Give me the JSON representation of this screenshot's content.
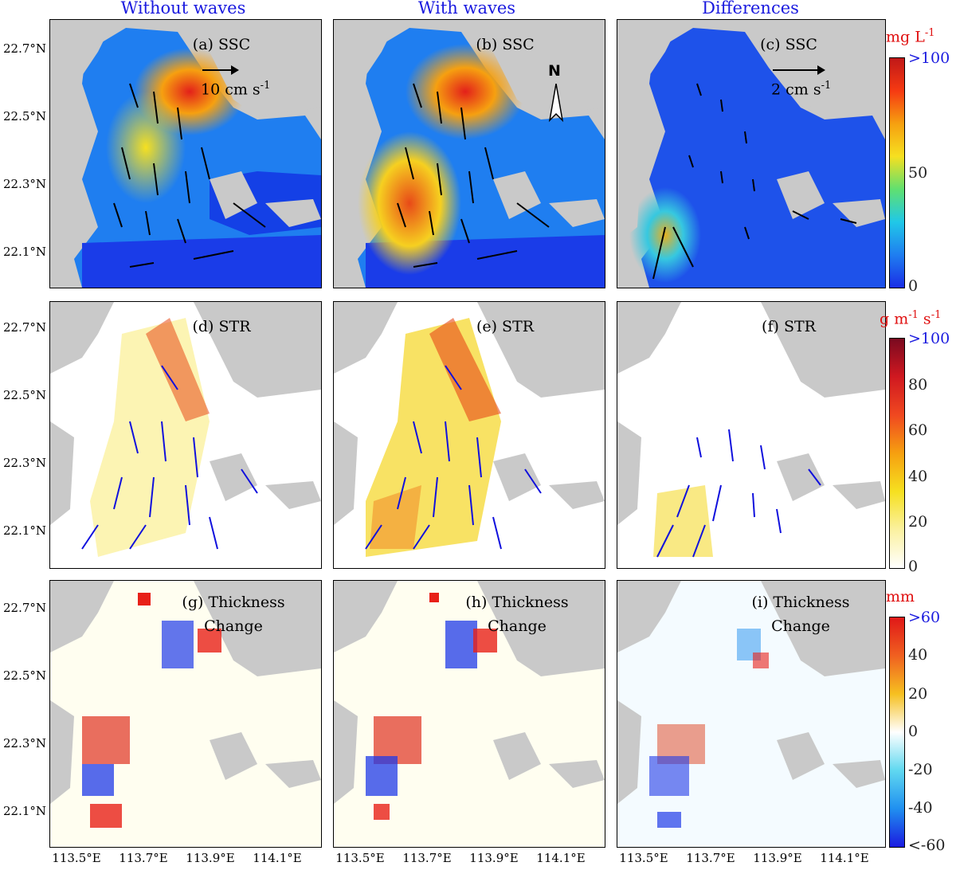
{
  "columns": [
    "Without waves",
    "With waves",
    "Differences"
  ],
  "lat_labels": [
    "22.7°N",
    "22.5°N",
    "22.3°N",
    "22.1°N"
  ],
  "lon_labels": [
    "113.5°E",
    "113.7°E",
    "113.9°E",
    "114.1°E"
  ],
  "panels": {
    "a": "(a) SSC",
    "b": "(b) SSC",
    "c": "(c) SSC",
    "d": "(d) STR",
    "e": "(e) STR",
    "f": "(f) STR",
    "g1": "(g) Thickness",
    "g2": "Change",
    "h1": "(h) Thickness",
    "h2": "Change",
    "i1": "(i) Thickness",
    "i2": "Change"
  },
  "scales": {
    "a": "10 cm s",
    "a_exp": "-1",
    "c": "2 cm s",
    "c_exp": "-1"
  },
  "north_label": "N",
  "colorbars": {
    "ssc": {
      "unit": "mg L",
      "unit_exp": "-1",
      "ticks": [
        ">100",
        "50",
        "0"
      ]
    },
    "str": {
      "unit": "g m",
      "unit_exp1": "-1",
      "unit_mid": " s",
      "unit_exp2": "-1",
      "ticks": [
        ">100",
        "80",
        "60",
        "40",
        "20",
        "0"
      ]
    },
    "thick": {
      "unit": "mm",
      "ticks": [
        ">60",
        "40",
        "20",
        "0",
        "-20",
        "-40",
        "<-60"
      ]
    }
  },
  "colors": {
    "land": "#c9c9c9",
    "title": "#1a1adf",
    "unit": "#e01010",
    "vector_str": "#1010dd"
  }
}
